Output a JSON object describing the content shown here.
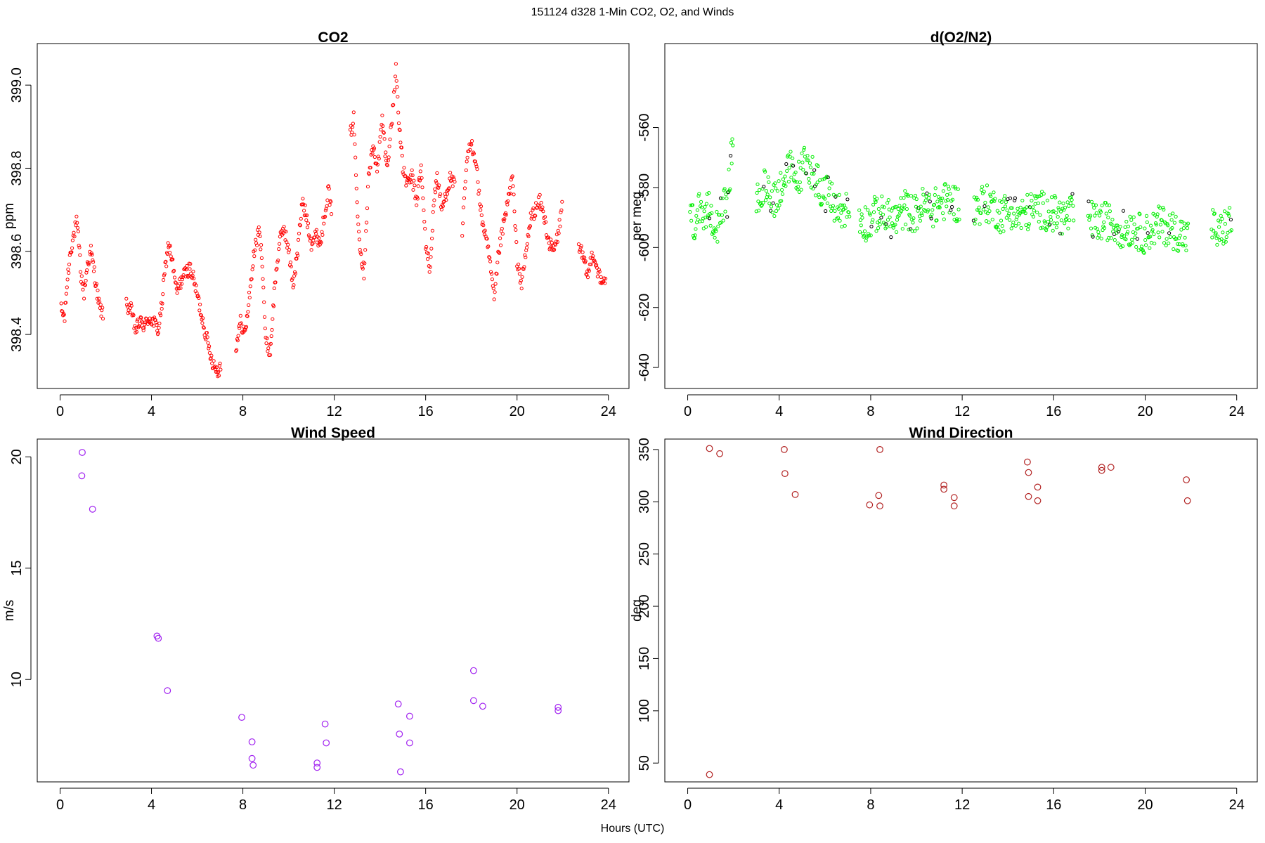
{
  "page": {
    "title": "151124   d328   1-Min CO2, O2, and Winds",
    "xlabel": "Hours (UTC)"
  },
  "chart_data": [
    {
      "id": "co2",
      "type": "scatter",
      "title": "CO2",
      "ylabel": "ppm",
      "color": "#ff0000",
      "marker": "small-circle",
      "xlim": [
        -1,
        24.9
      ],
      "ylim": [
        398.27,
        399.1
      ],
      "xticks": [
        0,
        4,
        8,
        12,
        16,
        20,
        24
      ],
      "yticks": [
        398.4,
        398.6,
        398.8,
        399.0
      ],
      "ytick_labels": [
        "398.4",
        "398.6",
        "398.8",
        "399.0"
      ],
      "series": [
        {
          "segments": [
            {
              "x": [
                0.05,
                0.2,
                0.3,
                0.45,
                0.6,
                0.72,
                0.82,
                0.92,
                1.05,
                1.2,
                1.35,
                1.5,
                1.62,
                1.75,
                1.9
              ],
              "y": [
                398.46,
                398.44,
                398.52,
                398.6,
                398.64,
                398.67,
                398.62,
                398.54,
                398.5,
                398.57,
                398.6,
                398.55,
                398.5,
                398.46,
                398.45
              ]
            },
            {
              "x": [
                2.9,
                3.1,
                3.3,
                3.5,
                3.7,
                3.9,
                4.1,
                4.3,
                4.45,
                4.6,
                4.75,
                4.9,
                5.1,
                5.3,
                5.5,
                5.7,
                5.9,
                6.1,
                6.3,
                6.5,
                6.7,
                6.9,
                7.05
              ],
              "y": [
                398.47,
                398.46,
                398.41,
                398.43,
                398.42,
                398.44,
                398.43,
                398.41,
                398.47,
                398.56,
                398.62,
                398.58,
                398.5,
                398.53,
                398.55,
                398.56,
                398.52,
                398.47,
                398.42,
                398.37,
                398.33,
                398.31,
                398.33
              ]
            },
            {
              "x": [
                7.7,
                7.9,
                8.1,
                8.3,
                8.5,
                8.7,
                8.85,
                9.0,
                9.2,
                9.4,
                9.6,
                9.8,
                10.0,
                10.2,
                10.4,
                10.6,
                10.8,
                11.0,
                11.2,
                11.4,
                11.6,
                11.75,
                11.9
              ],
              "y": [
                398.37,
                398.43,
                398.4,
                398.5,
                398.6,
                398.65,
                398.58,
                398.38,
                398.36,
                398.52,
                398.62,
                398.66,
                398.6,
                398.52,
                398.6,
                398.72,
                398.68,
                398.62,
                398.64,
                398.62,
                398.7,
                398.75,
                398.68
              ]
            },
            {
              "x": [
                12.7,
                12.85,
                13.0,
                13.15,
                13.3,
                13.5,
                13.7,
                13.9,
                14.1,
                14.3,
                14.5,
                14.7,
                14.85,
                15.0,
                15.2,
                15.4,
                15.6,
                15.8,
                16.0,
                16.2,
                16.35,
                16.5,
                16.7,
                16.9,
                17.1,
                17.3
              ],
              "y": [
                398.88,
                398.92,
                398.72,
                398.6,
                398.55,
                398.78,
                398.85,
                398.8,
                398.92,
                398.8,
                398.9,
                399.04,
                398.9,
                398.8,
                398.76,
                398.78,
                398.72,
                398.8,
                398.62,
                398.55,
                398.72,
                398.78,
                398.7,
                398.74,
                398.78,
                398.75
              ]
            },
            {
              "x": [
                17.6,
                17.8,
                18.0,
                18.2,
                18.4,
                18.6,
                18.8,
                19.0,
                19.2,
                19.4,
                19.6,
                19.8,
                20.0,
                20.2,
                20.4,
                20.6,
                20.8,
                21.0,
                21.2,
                21.4,
                21.6,
                21.8,
                22.0
              ],
              "y": [
                398.64,
                398.82,
                398.86,
                398.82,
                398.7,
                398.64,
                398.58,
                398.48,
                398.6,
                398.66,
                398.72,
                398.78,
                398.58,
                398.52,
                398.6,
                398.68,
                398.7,
                398.72,
                398.68,
                398.62,
                398.6,
                398.64,
                398.72
              ]
            },
            {
              "x": [
                22.7,
                22.9,
                23.1,
                23.3,
                23.5,
                23.7,
                23.9
              ],
              "y": [
                398.62,
                398.58,
                398.54,
                398.6,
                398.56,
                398.52,
                398.54
              ]
            }
          ]
        }
      ]
    },
    {
      "id": "o2",
      "type": "scatter",
      "title": "d(O2/N2)",
      "ylabel": "per meg",
      "color": "#00ee00",
      "marker": "small-circle",
      "xlim": [
        -1,
        24.9
      ],
      "ylim": [
        -647,
        -532
      ],
      "xticks": [
        0,
        4,
        8,
        12,
        16,
        20,
        24
      ],
      "yticks": [
        -640,
        -620,
        -600,
        -580,
        -560
      ],
      "ytick_labels": [
        "-640",
        "-620",
        "-600",
        "-580",
        "-560"
      ],
      "series": [
        {
          "segments": [
            {
              "x": [
                0.1,
                0.3,
                0.5,
                0.7,
                0.9,
                1.1,
                1.3,
                1.5,
                1.7,
                1.85,
                2.0
              ],
              "y": [
                -590,
                -592,
                -588,
                -595,
                -586,
                -590,
                -592,
                -585,
                -588,
                -575,
                -560
              ]
            },
            {
              "x": [
                3.0,
                3.3,
                3.6,
                3.9,
                4.2,
                4.5,
                4.8,
                5.1,
                5.4,
                5.7,
                6.0,
                6.3,
                6.6,
                6.9,
                7.1
              ],
              "y": [
                -586,
                -580,
                -582,
                -584,
                -576,
                -574,
                -578,
                -572,
                -574,
                -578,
                -582,
                -584,
                -588,
                -587,
                -588
              ]
            },
            {
              "x": [
                7.5,
                7.9,
                8.3,
                8.7,
                9.1,
                9.5,
                9.9,
                10.3,
                10.7,
                11.1,
                11.5,
                11.9
              ],
              "y": [
                -590,
                -592,
                -588,
                -590,
                -591,
                -587,
                -589,
                -586,
                -587,
                -585,
                -584,
                -586
              ]
            },
            {
              "x": [
                12.5,
                12.9,
                13.3,
                13.7,
                14.1,
                14.5,
                14.9,
                15.3,
                15.7,
                16.1,
                16.5,
                16.9
              ],
              "y": [
                -588,
                -585,
                -586,
                -589,
                -587,
                -590,
                -588,
                -587,
                -588,
                -589,
                -590,
                -588
              ]
            },
            {
              "x": [
                17.5,
                17.9,
                18.3,
                18.7,
                19.1,
                19.5,
                19.9,
                20.3,
                20.7,
                21.1,
                21.5,
                21.9
              ],
              "y": [
                -590,
                -592,
                -591,
                -593,
                -594,
                -593,
                -596,
                -594,
                -592,
                -594,
                -595,
                -597
              ]
            },
            {
              "x": [
                22.9,
                23.2,
                23.5,
                23.8
              ],
              "y": [
                -592,
                -596,
                -593,
                -591
              ]
            }
          ]
        }
      ]
    },
    {
      "id": "wind-speed",
      "type": "scatter",
      "title": "Wind Speed",
      "ylabel": "m/s",
      "color": "#a020f0",
      "marker": "circle",
      "xlim": [
        -1,
        24.9
      ],
      "ylim": [
        5.4,
        20.8
      ],
      "xticks": [
        0,
        4,
        8,
        12,
        16,
        20,
        24
      ],
      "yticks": [
        10,
        15,
        20
      ],
      "ytick_labels": [
        "10",
        "15",
        "20"
      ],
      "series": [
        {
          "x": [
            0.97,
            0.95,
            1.42,
            4.24,
            4.3,
            4.7,
            7.95,
            8.4,
            8.4,
            8.45,
            11.25,
            11.25,
            11.6,
            11.65,
            14.8,
            14.85,
            14.9,
            15.3,
            15.3,
            18.1,
            18.1,
            18.5,
            21.8,
            21.8
          ],
          "y": [
            20.2,
            19.15,
            17.65,
            11.95,
            11.85,
            9.5,
            8.3,
            7.2,
            6.45,
            6.15,
            6.25,
            6.05,
            8.0,
            7.15,
            8.9,
            7.55,
            5.85,
            8.35,
            7.15,
            10.4,
            9.05,
            8.8,
            8.75,
            8.6
          ]
        }
      ]
    },
    {
      "id": "wind-direction",
      "type": "scatter",
      "title": "Wind Direction",
      "ylabel": "deg",
      "color": "#b22222",
      "marker": "circle",
      "xlim": [
        -1,
        24.9
      ],
      "ylim": [
        32,
        360
      ],
      "xticks": [
        0,
        4,
        8,
        12,
        16,
        20,
        24
      ],
      "yticks": [
        50,
        100,
        150,
        200,
        250,
        300,
        350
      ],
      "ytick_labels": [
        "50",
        "100",
        "150",
        "200",
        "250",
        "300",
        "350"
      ],
      "series": [
        {
          "x": [
            0.95,
            0.95,
            1.4,
            4.22,
            4.25,
            4.7,
            7.95,
            8.4,
            8.35,
            8.4,
            11.2,
            11.2,
            11.65,
            11.65,
            14.85,
            14.9,
            14.9,
            15.3,
            15.3,
            18.1,
            18.1,
            18.5,
            21.8,
            21.85
          ],
          "y": [
            351,
            39,
            346,
            350,
            327,
            307,
            297,
            350,
            306,
            296,
            316,
            312,
            304,
            296,
            338,
            328,
            305,
            314,
            301,
            333,
            330,
            333,
            321,
            301
          ]
        }
      ]
    }
  ]
}
